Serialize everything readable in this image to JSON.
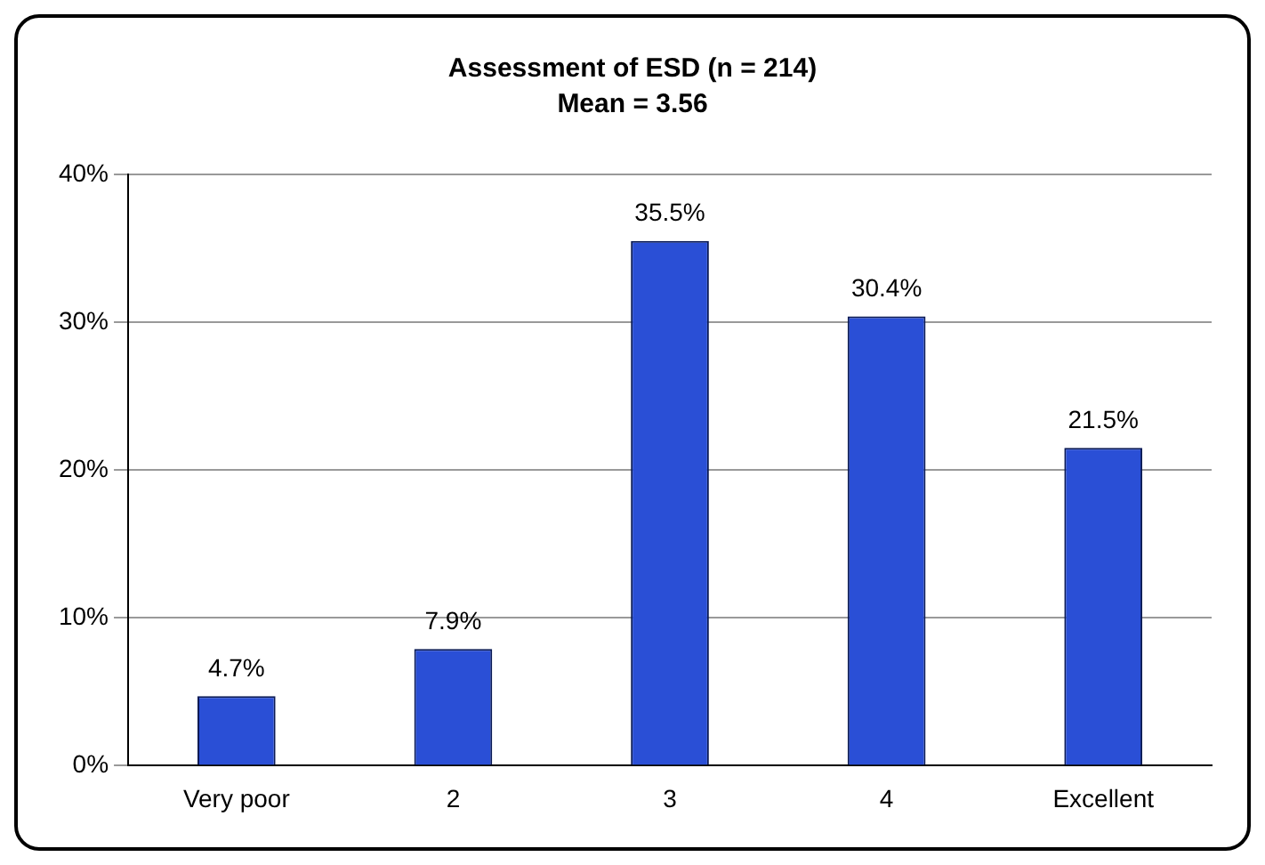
{
  "chart_data": {
    "type": "bar",
    "title": "Assessment of ESD (n = 214)",
    "subtitle": "Mean = 3.56",
    "categories": [
      "Very poor",
      "2",
      "3",
      "4",
      "Excellent"
    ],
    "values": [
      4.7,
      7.9,
      35.5,
      30.4,
      21.5
    ],
    "value_labels": [
      "4.7%",
      "7.9%",
      "35.5%",
      "30.4%",
      "21.5%"
    ],
    "color": "#2a4fd6",
    "ylim": [
      0,
      40
    ],
    "yticks": [
      {
        "value": 0,
        "label": "0%"
      },
      {
        "value": 10,
        "label": "10%"
      },
      {
        "value": 20,
        "label": "20%"
      },
      {
        "value": 30,
        "label": "30%"
      },
      {
        "value": 40,
        "label": "40%"
      }
    ],
    "grid": "y",
    "legend": false
  }
}
